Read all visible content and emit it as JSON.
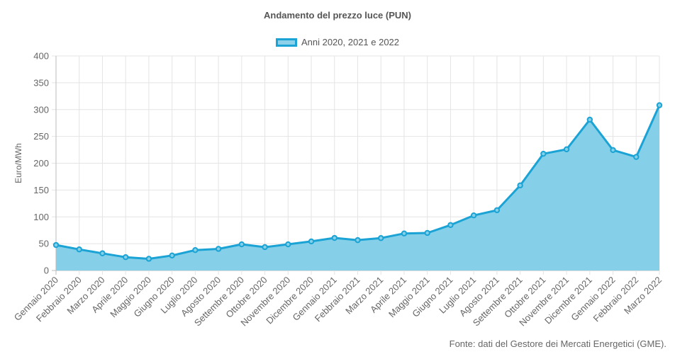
{
  "chart_data": {
    "type": "area",
    "title": "Andamento del prezzo luce (PUN)",
    "ylabel": "Euro/MWh",
    "xlabel": "",
    "ylim": [
      0,
      400
    ],
    "yticks": [
      0,
      50,
      100,
      150,
      200,
      250,
      300,
      350,
      400
    ],
    "grid": true,
    "legend_position": "top",
    "categories": [
      "Gennaio 2020",
      "Febbraio 2020",
      "Marzo 2020",
      "Aprile 2020",
      "Maggio 2020",
      "Giugno 2020",
      "Luglio 2020",
      "Agosto 2020",
      "Settembre 2020",
      "Ottobre 2020",
      "Novembre 2020",
      "Dicembre 2020",
      "Gennaio 2021",
      "Febbraio 2021",
      "Marzo 2021",
      "Aprile 2021",
      "Maggio 2021",
      "Giugno 2021",
      "Luglio 2021",
      "Agosto 2021",
      "Settembre 2021",
      "Ottobre 2021",
      "Novembre 2021",
      "Dicembre 2021",
      "Gennaio 2022",
      "Febbraio 2022",
      "Marzo 2022"
    ],
    "series": [
      {
        "name": "Anni 2020, 2021 e 2022",
        "color": "#1aa3d4",
        "fill": "#85d0e8",
        "values": [
          47.5,
          39.3,
          32.0,
          24.8,
          21.8,
          28.0,
          38.0,
          40.3,
          48.8,
          43.6,
          48.8,
          54.2,
          60.7,
          56.6,
          60.4,
          69.0,
          70.0,
          84.8,
          102.7,
          112.4,
          158.6,
          217.6,
          225.9,
          281.2,
          224.5,
          211.7,
          308.1
        ]
      }
    ]
  },
  "legend": {
    "label": "Anni 2020, 2021 e 2022"
  },
  "source_note": "Fonte: dati del Gestore dei Mercati Energetici (GME)."
}
